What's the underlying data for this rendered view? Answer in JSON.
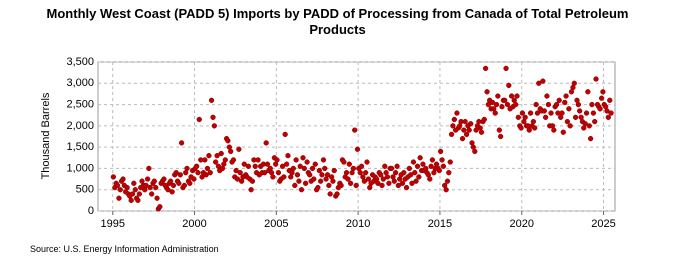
{
  "chart_data": {
    "type": "scatter",
    "title": "Monthly West Coast (PADD 5) Imports by PADD of Processing from Canada of Total Petroleum Products",
    "y_label": "Thousand Barrels",
    "source": "Source: U.S. Energy Information Administration",
    "xlim": [
      1994.1,
      2025.7
    ],
    "xticks": [
      1995,
      2000,
      2005,
      2010,
      2015,
      2020,
      2025
    ],
    "ylim": [
      0,
      3500
    ],
    "yticks": [
      0,
      500,
      {
        "value": 1000,
        "label": "1,000"
      },
      {
        "value": 1500,
        "label": "1,500"
      },
      {
        "value": 2000,
        "label": "2,000"
      },
      {
        "value": 2500,
        "label": "2,500"
      },
      {
        "value": 3000,
        "label": "3,000"
      },
      {
        "value": 3500,
        "label": "3,500"
      }
    ],
    "grid": true,
    "series": [
      {
        "color": "#c00000",
        "x": [
          1995.04,
          1995.13,
          1995.21,
          1995.29,
          1995.38,
          1995.46,
          1995.54,
          1995.63,
          1995.71,
          1995.79,
          1995.88,
          1995.96,
          1996.04,
          1996.13,
          1996.21,
          1996.29,
          1996.38,
          1996.46,
          1996.54,
          1996.63,
          1996.71,
          1996.79,
          1996.88,
          1996.96,
          1997.04,
          1997.13,
          1997.21,
          1997.29,
          1997.38,
          1997.46,
          1997.54,
          1997.63,
          1997.71,
          1997.79,
          1997.88,
          1997.96,
          1998.04,
          1998.13,
          1998.21,
          1998.29,
          1998.38,
          1998.46,
          1998.54,
          1998.63,
          1998.71,
          1998.79,
          1998.88,
          1998.96,
          1999.04,
          1999.13,
          1999.21,
          1999.29,
          1999.38,
          1999.46,
          1999.54,
          1999.63,
          1999.71,
          1999.79,
          1999.88,
          1999.96,
          2000.04,
          2000.13,
          2000.21,
          2000.29,
          2000.38,
          2000.46,
          2000.54,
          2000.63,
          2000.71,
          2000.79,
          2000.88,
          2000.96,
          2001.04,
          2001.13,
          2001.21,
          2001.29,
          2001.38,
          2001.46,
          2001.54,
          2001.63,
          2001.71,
          2001.79,
          2001.88,
          2001.96,
          2002.04,
          2002.13,
          2002.21,
          2002.29,
          2002.38,
          2002.46,
          2002.54,
          2002.63,
          2002.71,
          2002.79,
          2002.88,
          2002.96,
          2003.04,
          2003.13,
          2003.21,
          2003.29,
          2003.38,
          2003.46,
          2003.54,
          2003.63,
          2003.71,
          2003.79,
          2003.88,
          2003.96,
          2004.04,
          2004.13,
          2004.21,
          2004.29,
          2004.38,
          2004.46,
          2004.54,
          2004.63,
          2004.71,
          2004.79,
          2004.88,
          2004.96,
          2005.04,
          2005.13,
          2005.21,
          2005.29,
          2005.38,
          2005.46,
          2005.54,
          2005.63,
          2005.71,
          2005.79,
          2005.88,
          2005.96,
          2006.04,
          2006.13,
          2006.21,
          2006.29,
          2006.38,
          2006.46,
          2006.54,
          2006.63,
          2006.71,
          2006.79,
          2006.88,
          2006.96,
          2007.04,
          2007.13,
          2007.21,
          2007.29,
          2007.38,
          2007.46,
          2007.54,
          2007.63,
          2007.71,
          2007.79,
          2007.88,
          2007.96,
          2008.04,
          2008.13,
          2008.21,
          2008.29,
          2008.38,
          2008.46,
          2008.54,
          2008.63,
          2008.71,
          2008.79,
          2008.88,
          2008.96,
          2009.04,
          2009.13,
          2009.21,
          2009.29,
          2009.38,
          2009.46,
          2009.54,
          2009.63,
          2009.71,
          2009.79,
          2009.88,
          2009.96,
          2010.04,
          2010.13,
          2010.21,
          2010.29,
          2010.38,
          2010.46,
          2010.54,
          2010.63,
          2010.71,
          2010.79,
          2010.88,
          2010.96,
          2011.04,
          2011.13,
          2011.21,
          2011.29,
          2011.38,
          2011.46,
          2011.54,
          2011.63,
          2011.71,
          2011.79,
          2011.88,
          2011.96,
          2012.04,
          2012.13,
          2012.21,
          2012.29,
          2012.38,
          2012.46,
          2012.54,
          2012.63,
          2012.71,
          2012.79,
          2012.88,
          2012.96,
          2013.04,
          2013.13,
          2013.21,
          2013.29,
          2013.38,
          2013.46,
          2013.54,
          2013.63,
          2013.71,
          2013.79,
          2013.88,
          2013.96,
          2014.04,
          2014.13,
          2014.21,
          2014.29,
          2014.38,
          2014.46,
          2014.54,
          2014.63,
          2014.71,
          2014.79,
          2014.88,
          2014.96,
          2015.04,
          2015.13,
          2015.21,
          2015.29,
          2015.38,
          2015.46,
          2015.54,
          2015.63,
          2015.71,
          2015.79,
          2015.88,
          2015.96,
          2016.04,
          2016.13,
          2016.21,
          2016.29,
          2016.38,
          2016.46,
          2016.54,
          2016.63,
          2016.71,
          2016.79,
          2016.88,
          2016.96,
          2017.04,
          2017.13,
          2017.21,
          2017.29,
          2017.38,
          2017.46,
          2017.54,
          2017.63,
          2017.71,
          2017.79,
          2017.88,
          2017.96,
          2018.04,
          2018.13,
          2018.21,
          2018.29,
          2018.38,
          2018.46,
          2018.54,
          2018.63,
          2018.71,
          2018.79,
          2018.88,
          2018.96,
          2019.04,
          2019.13,
          2019.21,
          2019.29,
          2019.38,
          2019.46,
          2019.54,
          2019.63,
          2019.71,
          2019.79,
          2019.88,
          2019.96,
          2020.04,
          2020.13,
          2020.21,
          2020.29,
          2020.38,
          2020.46,
          2020.54,
          2020.63,
          2020.71,
          2020.79,
          2020.88,
          2020.96,
          2021.04,
          2021.13,
          2021.21,
          2021.29,
          2021.38,
          2021.46,
          2021.54,
          2021.63,
          2021.71,
          2021.79,
          2021.88,
          2021.96,
          2022.04,
          2022.13,
          2022.21,
          2022.29,
          2022.38,
          2022.46,
          2022.54,
          2022.63,
          2022.71,
          2022.79,
          2022.88,
          2022.96,
          2023.04,
          2023.13,
          2023.21,
          2023.29,
          2023.38,
          2023.46,
          2023.54,
          2023.63,
          2023.71,
          2023.79,
          2023.88,
          2023.96,
          2024.04,
          2024.13,
          2024.21,
          2024.29,
          2024.38,
          2024.46,
          2024.54,
          2024.63,
          2024.71,
          2024.79,
          2024.88,
          2024.96,
          2025.04,
          2025.13,
          2025.21,
          2025.29,
          2025.38,
          2025.46
        ],
        "values": [
          800,
          550,
          650,
          600,
          300,
          500,
          700,
          750,
          600,
          450,
          550,
          400,
          350,
          250,
          400,
          650,
          500,
          300,
          250,
          400,
          550,
          700,
          600,
          500,
          600,
          750,
          1000,
          550,
          400,
          650,
          700,
          550,
          300,
          50,
          100,
          650,
          700,
          750,
          600,
          550,
          500,
          650,
          700,
          450,
          600,
          850,
          900,
          700,
          650,
          850,
          1600,
          550,
          600,
          900,
          1000,
          700,
          650,
          800,
          950,
          750,
          1000,
          1050,
          900,
          2150,
          1200,
          800,
          900,
          1200,
          850,
          1000,
          1300,
          900,
          2600,
          2200,
          2000,
          1150,
          1300,
          1050,
          950,
          1350,
          1000,
          1100,
          1200,
          1700,
          1650,
          1500,
          1400,
          1150,
          1200,
          800,
          950,
          750,
          1450,
          900,
          700,
          800,
          1100,
          850,
          800,
          1050,
          750,
          500,
          700,
          1200,
          1050,
          900,
          1200,
          850,
          1050,
          900,
          1100,
          900,
          1600,
          1100,
          950,
          1000,
          900,
          800,
          1250,
          1100,
          1200,
          900,
          700,
          750,
          1050,
          800,
          1800,
          1100,
          1300,
          950,
          800,
          900,
          1000,
          600,
          1200,
          850,
          700,
          1050,
          500,
          1250,
          1000,
          650,
          1150,
          900,
          850,
          700,
          1000,
          750,
          1100,
          500,
          550,
          950,
          700,
          850,
          1200,
          1000,
          750,
          850,
          600,
          400,
          800,
          700,
          950,
          350,
          400,
          550,
          650,
          600,
          1200,
          1150,
          800,
          900,
          750,
          1100,
          650,
          900,
          1000,
          1900,
          600,
          1450,
          1000,
          900,
          1050,
          800,
          700,
          900,
          1150,
          750,
          550,
          650,
          850,
          700,
          800,
          750,
          650,
          900,
          850,
          600,
          750,
          1050,
          900,
          800,
          650,
          1000,
          1000,
          800,
          700,
          900,
          1050,
          600,
          750,
          850,
          650,
          900,
          750,
          550,
          800,
          1000,
          850,
          650,
          1150,
          900,
          700,
          1050,
          800,
          1250,
          950,
          1100,
          950,
          1000,
          900,
          850,
          750,
          1050,
          1200,
          900,
          1000,
          1100,
          1000,
          950,
          1400,
          1200,
          1050,
          600,
          500,
          700,
          900,
          1150,
          1800,
          2000,
          2150,
          1900,
          2300,
          1950,
          2000,
          2100,
          1700,
          1900,
          2100,
          1800,
          2000,
          1900,
          2050,
          1600,
          1500,
          1400,
          1900,
          2000,
          2100,
          1950,
          1850,
          2100,
          2150,
          3350,
          2800,
          2500,
          2600,
          2400,
          2550,
          2400,
          2300,
          2500,
          2700,
          1900,
          1750,
          2450,
          2600,
          2600,
          3350,
          2500,
          2950,
          2400,
          2700,
          2450,
          2600,
          2500,
          2700,
          2200,
          2000,
          1950,
          2300,
          2100,
          2200,
          2000,
          2000,
          1900,
          2300,
          2000,
          2100,
          1950,
          2500,
          2300,
          3000,
          2400,
          2350,
          3050,
          2350,
          2200,
          2700,
          2500,
          2000,
          2300,
          2000,
          1900,
          2450,
          2500,
          2300,
          2600,
          2200,
          2300,
          1850,
          2550,
          2700,
          2100,
          2400,
          2000,
          2800,
          2900,
          3000,
          2200,
          2600,
          2500,
          2350,
          2200,
          2100,
          1950,
          2050,
          2300,
          2800,
          2000,
          1700,
          2500,
          2300,
          2100,
          3100,
          2500,
          2450,
          2400,
          2650,
          2800,
          2500,
          2450,
          2350,
          2200,
          2600,
          2300
        ]
      }
    ]
  }
}
